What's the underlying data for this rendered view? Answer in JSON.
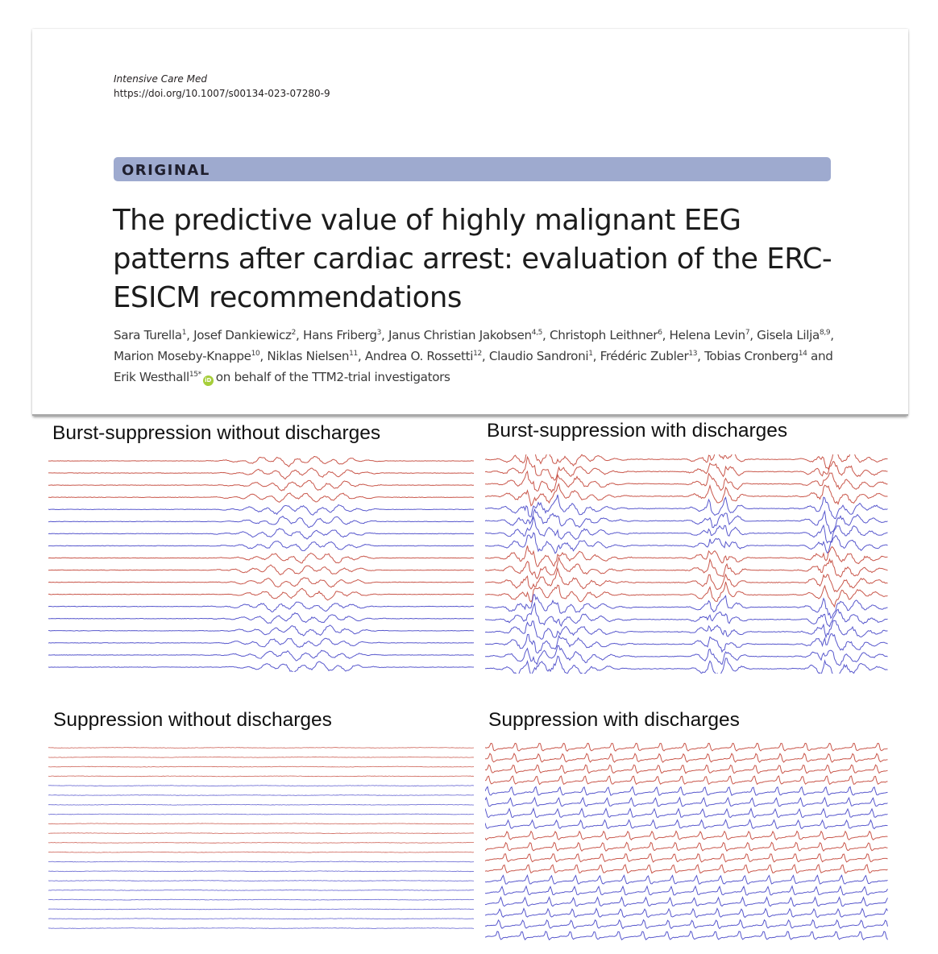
{
  "header": {
    "journal": "Intensive Care Med",
    "doi": "https://doi.org/10.1007/s00134-023-07280-9",
    "article_type": "ORIGINAL",
    "title": "The predictive value of highly malignant EEG patterns after cardiac arrest: evaluation of the ERC-ESICM recommendations"
  },
  "authors": [
    {
      "name": "Sara Turella",
      "aff": "1"
    },
    {
      "name": "Josef Dankiewicz",
      "aff": "2"
    },
    {
      "name": "Hans Friberg",
      "aff": "3"
    },
    {
      "name": "Janus Christian Jakobsen",
      "aff": "4,5"
    },
    {
      "name": "Christoph Leithner",
      "aff": "6"
    },
    {
      "name": "Helena Levin",
      "aff": "7"
    },
    {
      "name": "Gisela Lilja",
      "aff": "8,9"
    },
    {
      "name": "Marion Moseby-Knappe",
      "aff": "10"
    },
    {
      "name": "Niklas Nielsen",
      "aff": "11"
    },
    {
      "name": "Andrea O. Rossetti",
      "aff": "12"
    },
    {
      "name": "Claudio Sandroni",
      "aff": "1"
    },
    {
      "name": "Frédéric Zubler",
      "aff": "13"
    },
    {
      "name": "Tobias Cronberg",
      "aff": "14"
    },
    {
      "name": "Erik Westhall",
      "aff": "15*"
    }
  ],
  "authors_tail": "on behalf of the TTM2-trial investigators",
  "orcid_icon_label": "iD",
  "colors": {
    "band": "#9eaacf",
    "red_trace": "#c0392b",
    "blue_trace": "#3b3bc4"
  },
  "panels": [
    {
      "id": "bs-no",
      "title": "Burst-suppression without discharges",
      "pattern": "burst-suppression-no-discharges"
    },
    {
      "id": "bs-dis",
      "title": "Burst-suppression with discharges",
      "pattern": "burst-suppression-discharges"
    },
    {
      "id": "sup-no",
      "title": "Suppression without discharges",
      "pattern": "suppression-no-discharges"
    },
    {
      "id": "sup-dis",
      "title": "Suppression with discharges",
      "pattern": "suppression-discharges"
    }
  ]
}
